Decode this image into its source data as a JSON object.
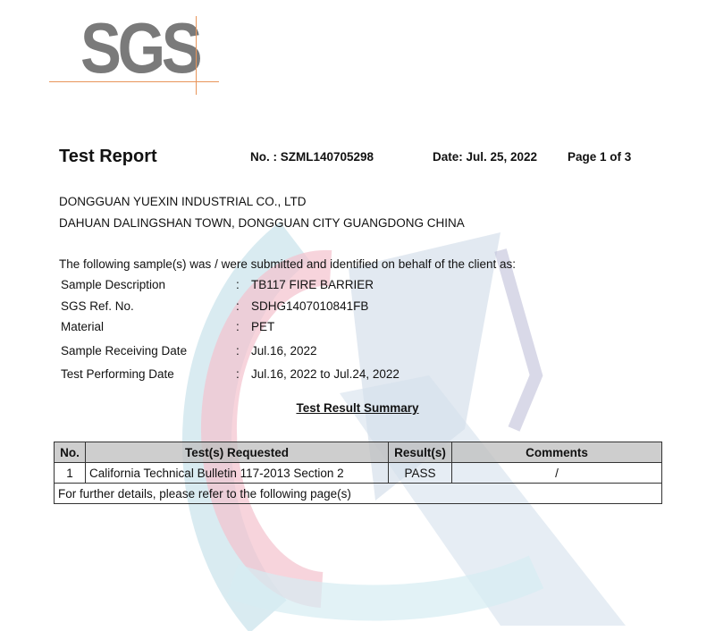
{
  "logo": {
    "text": "SGS",
    "accent_color": "#e8955a",
    "text_color": "#7a7a7a"
  },
  "header": {
    "title": "Test Report",
    "report_no": "No. : SZML140705298",
    "date": "Date: Jul. 25, 2022",
    "page": "Page 1 of  3"
  },
  "client": {
    "name": "DONGGUAN YUEXIN INDUSTRIAL CO., LTD",
    "address": "DAHUAN DALINGSHAN TOWN, DONGGUAN CITY GUANGDONG CHINA"
  },
  "intro": "The following sample(s) was / were submitted and identified on behalf of the client as:",
  "sample_fields": [
    {
      "label": "Sample Description",
      "value": "TB117 FIRE BARRIER"
    },
    {
      "label": "SGS Ref. No.",
      "value": "SDHG1407010841FB"
    },
    {
      "label": "Material",
      "value": "PET"
    },
    {
      "label": "Sample Receiving Date",
      "value": "Jul.16, 2022"
    },
    {
      "label": "Test Performing Date",
      "value": "Jul.16, 2022 to Jul.24, 2022"
    }
  ],
  "colon": ":",
  "summary_title": "Test Result Summary",
  "table": {
    "headers": [
      "No.",
      "Test(s) Requested",
      "Result(s)",
      "Comments"
    ],
    "rows": [
      [
        "1",
        "California Technical Bulletin 117-2013 Section 2",
        "PASS",
        "/"
      ]
    ],
    "footer": "For further details, please refer to the following page(s)"
  }
}
